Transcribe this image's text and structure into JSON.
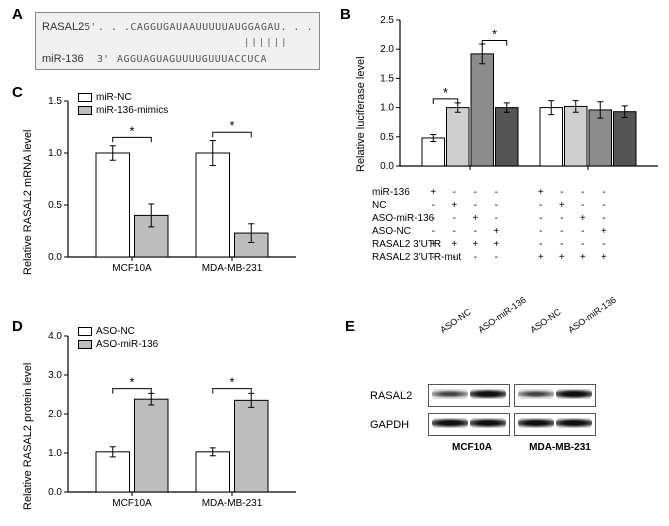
{
  "panelA": {
    "label": "A",
    "gene": "RASAL2",
    "mir": "miR-136",
    "gene_dir": "5'",
    "mir_dir": "3'",
    "gene_seq": ". . .CAGGUGAUAAUUUUUAUGGAGAU. . .",
    "mir_seq": "AGGUAGUAGUUUUGUUUACCUCA",
    "bonds": "||||||"
  },
  "panelB": {
    "label": "B",
    "ylabel": "Relative luciferase level",
    "ylim": [
      0,
      2.5
    ],
    "ytick_step": 0.5,
    "bg": "#ffffff",
    "axis_color": "#000000",
    "groups": [
      {
        "values": [
          0.48,
          1.0,
          1.92,
          1.0
        ],
        "colors": [
          "#ffffff",
          "#cfcfcf",
          "#8c8c8c",
          "#555555"
        ],
        "err": [
          0.06,
          0.08,
          0.17,
          0.08
        ]
      },
      {
        "values": [
          1.0,
          1.02,
          0.96,
          0.93
        ],
        "colors": [
          "#ffffff",
          "#cfcfcf",
          "#8c8c8c",
          "#555555"
        ],
        "err": [
          0.12,
          0.1,
          0.14,
          0.1
        ]
      }
    ],
    "sig": [
      {
        "group": 0,
        "a": 0,
        "b": 1,
        "y": 1.15,
        "mark": "*"
      },
      {
        "group": 0,
        "a": 2,
        "b": 3,
        "y": 2.15,
        "mark": "*"
      }
    ],
    "conditions": {
      "rows": [
        {
          "label": "miR-136",
          "vals": [
            "+",
            "-",
            "-",
            "-",
            "+",
            "-",
            "-",
            "-"
          ]
        },
        {
          "label": "NC",
          "vals": [
            "-",
            "+",
            "-",
            "-",
            "-",
            "+",
            "-",
            "-"
          ]
        },
        {
          "label": "ASO-miR-136",
          "vals": [
            "-",
            "-",
            "+",
            "-",
            "-",
            "-",
            "+",
            "-"
          ]
        },
        {
          "label": "ASO-NC",
          "vals": [
            "-",
            "-",
            "-",
            "+",
            "-",
            "-",
            "-",
            "+"
          ]
        },
        {
          "label": "RASAL2 3'UTR",
          "vals": [
            "+",
            "+",
            "+",
            "+",
            "-",
            "-",
            "-",
            "-"
          ]
        },
        {
          "label": "RASAL2 3'UTR-mut",
          "vals": [
            "-",
            "-",
            "-",
            "-",
            "+",
            "+",
            "+",
            "+"
          ]
        }
      ]
    }
  },
  "panelC": {
    "label": "C",
    "ylabel": "Relative RASAL2 mRNA level",
    "ylim": [
      0,
      1.5
    ],
    "ytick_step": 0.5,
    "legend": [
      {
        "label": "miR-NC",
        "color": "#ffffff"
      },
      {
        "label": "miR-136-mimics",
        "color": "#bdbdbd"
      }
    ],
    "groups": [
      {
        "name": "MCF10A",
        "values": [
          1.0,
          0.4
        ],
        "err": [
          0.07,
          0.11
        ]
      },
      {
        "name": "MDA-MB-231",
        "values": [
          1.0,
          0.23
        ],
        "err": [
          0.12,
          0.09
        ]
      }
    ],
    "sig": [
      {
        "group": 0,
        "y": 1.15,
        "mark": "*"
      },
      {
        "group": 1,
        "y": 1.2,
        "mark": "*"
      }
    ]
  },
  "panelD": {
    "label": "D",
    "ylabel": "Relative RASAL2  protein level",
    "ylim": [
      0,
      4.0
    ],
    "ytick_step": 1.0,
    "legend": [
      {
        "label": "ASO-NC",
        "color": "#ffffff"
      },
      {
        "label": "ASO-miR-136",
        "color": "#bdbdbd"
      }
    ],
    "groups": [
      {
        "name": "MCF10A",
        "values": [
          1.03,
          2.38
        ],
        "err": [
          0.13,
          0.15
        ]
      },
      {
        "name": "MDA-MB-231",
        "values": [
          1.03,
          2.35
        ],
        "err": [
          0.1,
          0.18
        ]
      }
    ],
    "sig": [
      {
        "group": 0,
        "y": 2.65,
        "mark": "*"
      },
      {
        "group": 1,
        "y": 2.65,
        "mark": "*"
      }
    ]
  },
  "panelE": {
    "label": "E",
    "lane_labels": [
      "ASO-NC",
      "ASO-miR-136",
      "ASO-NC",
      "ASO-miR-136"
    ],
    "row_labels": [
      "RASAL2",
      "GAPDH"
    ],
    "group_labels": [
      "MCF10A",
      "MDA-MB-231"
    ],
    "rasal2_intensity": [
      "light",
      "dark",
      "light",
      "dark"
    ]
  }
}
